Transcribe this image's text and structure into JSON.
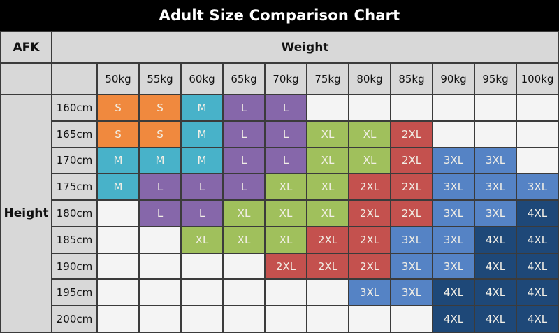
{
  "title": "Adult Size Comparison Chart",
  "corner_label": "AFK",
  "weight_header": "Weight",
  "height_header": "Height",
  "chart_data": {
    "type": "table",
    "title": "Adult Size Comparison Chart",
    "xlabel": "Weight",
    "ylabel": "Height",
    "columns": [
      "50kg",
      "55kg",
      "60kg",
      "65kg",
      "70kg",
      "75kg",
      "80kg",
      "85kg",
      "90kg",
      "95kg",
      "100kg"
    ],
    "rows": [
      "160cm",
      "165cm",
      "170cm",
      "175cm",
      "180cm",
      "185cm",
      "190cm",
      "195cm",
      "200cm"
    ],
    "cells": [
      [
        "S",
        "S",
        "M",
        "L",
        "L",
        "",
        "",
        "",
        "",
        "",
        ""
      ],
      [
        "S",
        "S",
        "M",
        "L",
        "L",
        "XL",
        "XL",
        "2XL",
        "",
        "",
        ""
      ],
      [
        "M",
        "M",
        "M",
        "L",
        "L",
        "XL",
        "XL",
        "2XL",
        "3XL",
        "3XL",
        ""
      ],
      [
        "M",
        "L",
        "L",
        "L",
        "XL",
        "XL",
        "2XL",
        "2XL",
        "3XL",
        "3XL",
        "3XL"
      ],
      [
        "",
        "L",
        "L",
        "XL",
        "XL",
        "XL",
        "2XL",
        "2XL",
        "3XL",
        "3XL",
        "4XL"
      ],
      [
        "",
        "",
        "XL",
        "XL",
        "XL",
        "2XL",
        "2XL",
        "3XL",
        "3XL",
        "4XL",
        "4XL"
      ],
      [
        "",
        "",
        "",
        "",
        "2XL",
        "2XL",
        "2XL",
        "3XL",
        "3XL",
        "4XL",
        "4XL"
      ],
      [
        "",
        "",
        "",
        "",
        "",
        "",
        "3XL",
        "3XL",
        "4XL",
        "4XL",
        "4XL"
      ],
      [
        "",
        "",
        "",
        "",
        "",
        "",
        "",
        "",
        "4XL",
        "4XL",
        "4XL"
      ]
    ]
  },
  "size_colors": {
    "S": "#F0893E",
    "M": "#48B2C9",
    "L": "#8667AA",
    "XL": "#A0C05C",
    "2XL": "#C4514E",
    "3XL": "#5583C5",
    "4XL": "#1E4878"
  },
  "palette": {
    "title_bg": "#000000",
    "title_fg": "#FFFFFF",
    "header_bg": "#D8D8D8",
    "empty_cell_bg": "#F4F4F4",
    "grid_border": "#3B3B3B",
    "cell_text": "#F2EFE6",
    "header_text": "#111111"
  }
}
